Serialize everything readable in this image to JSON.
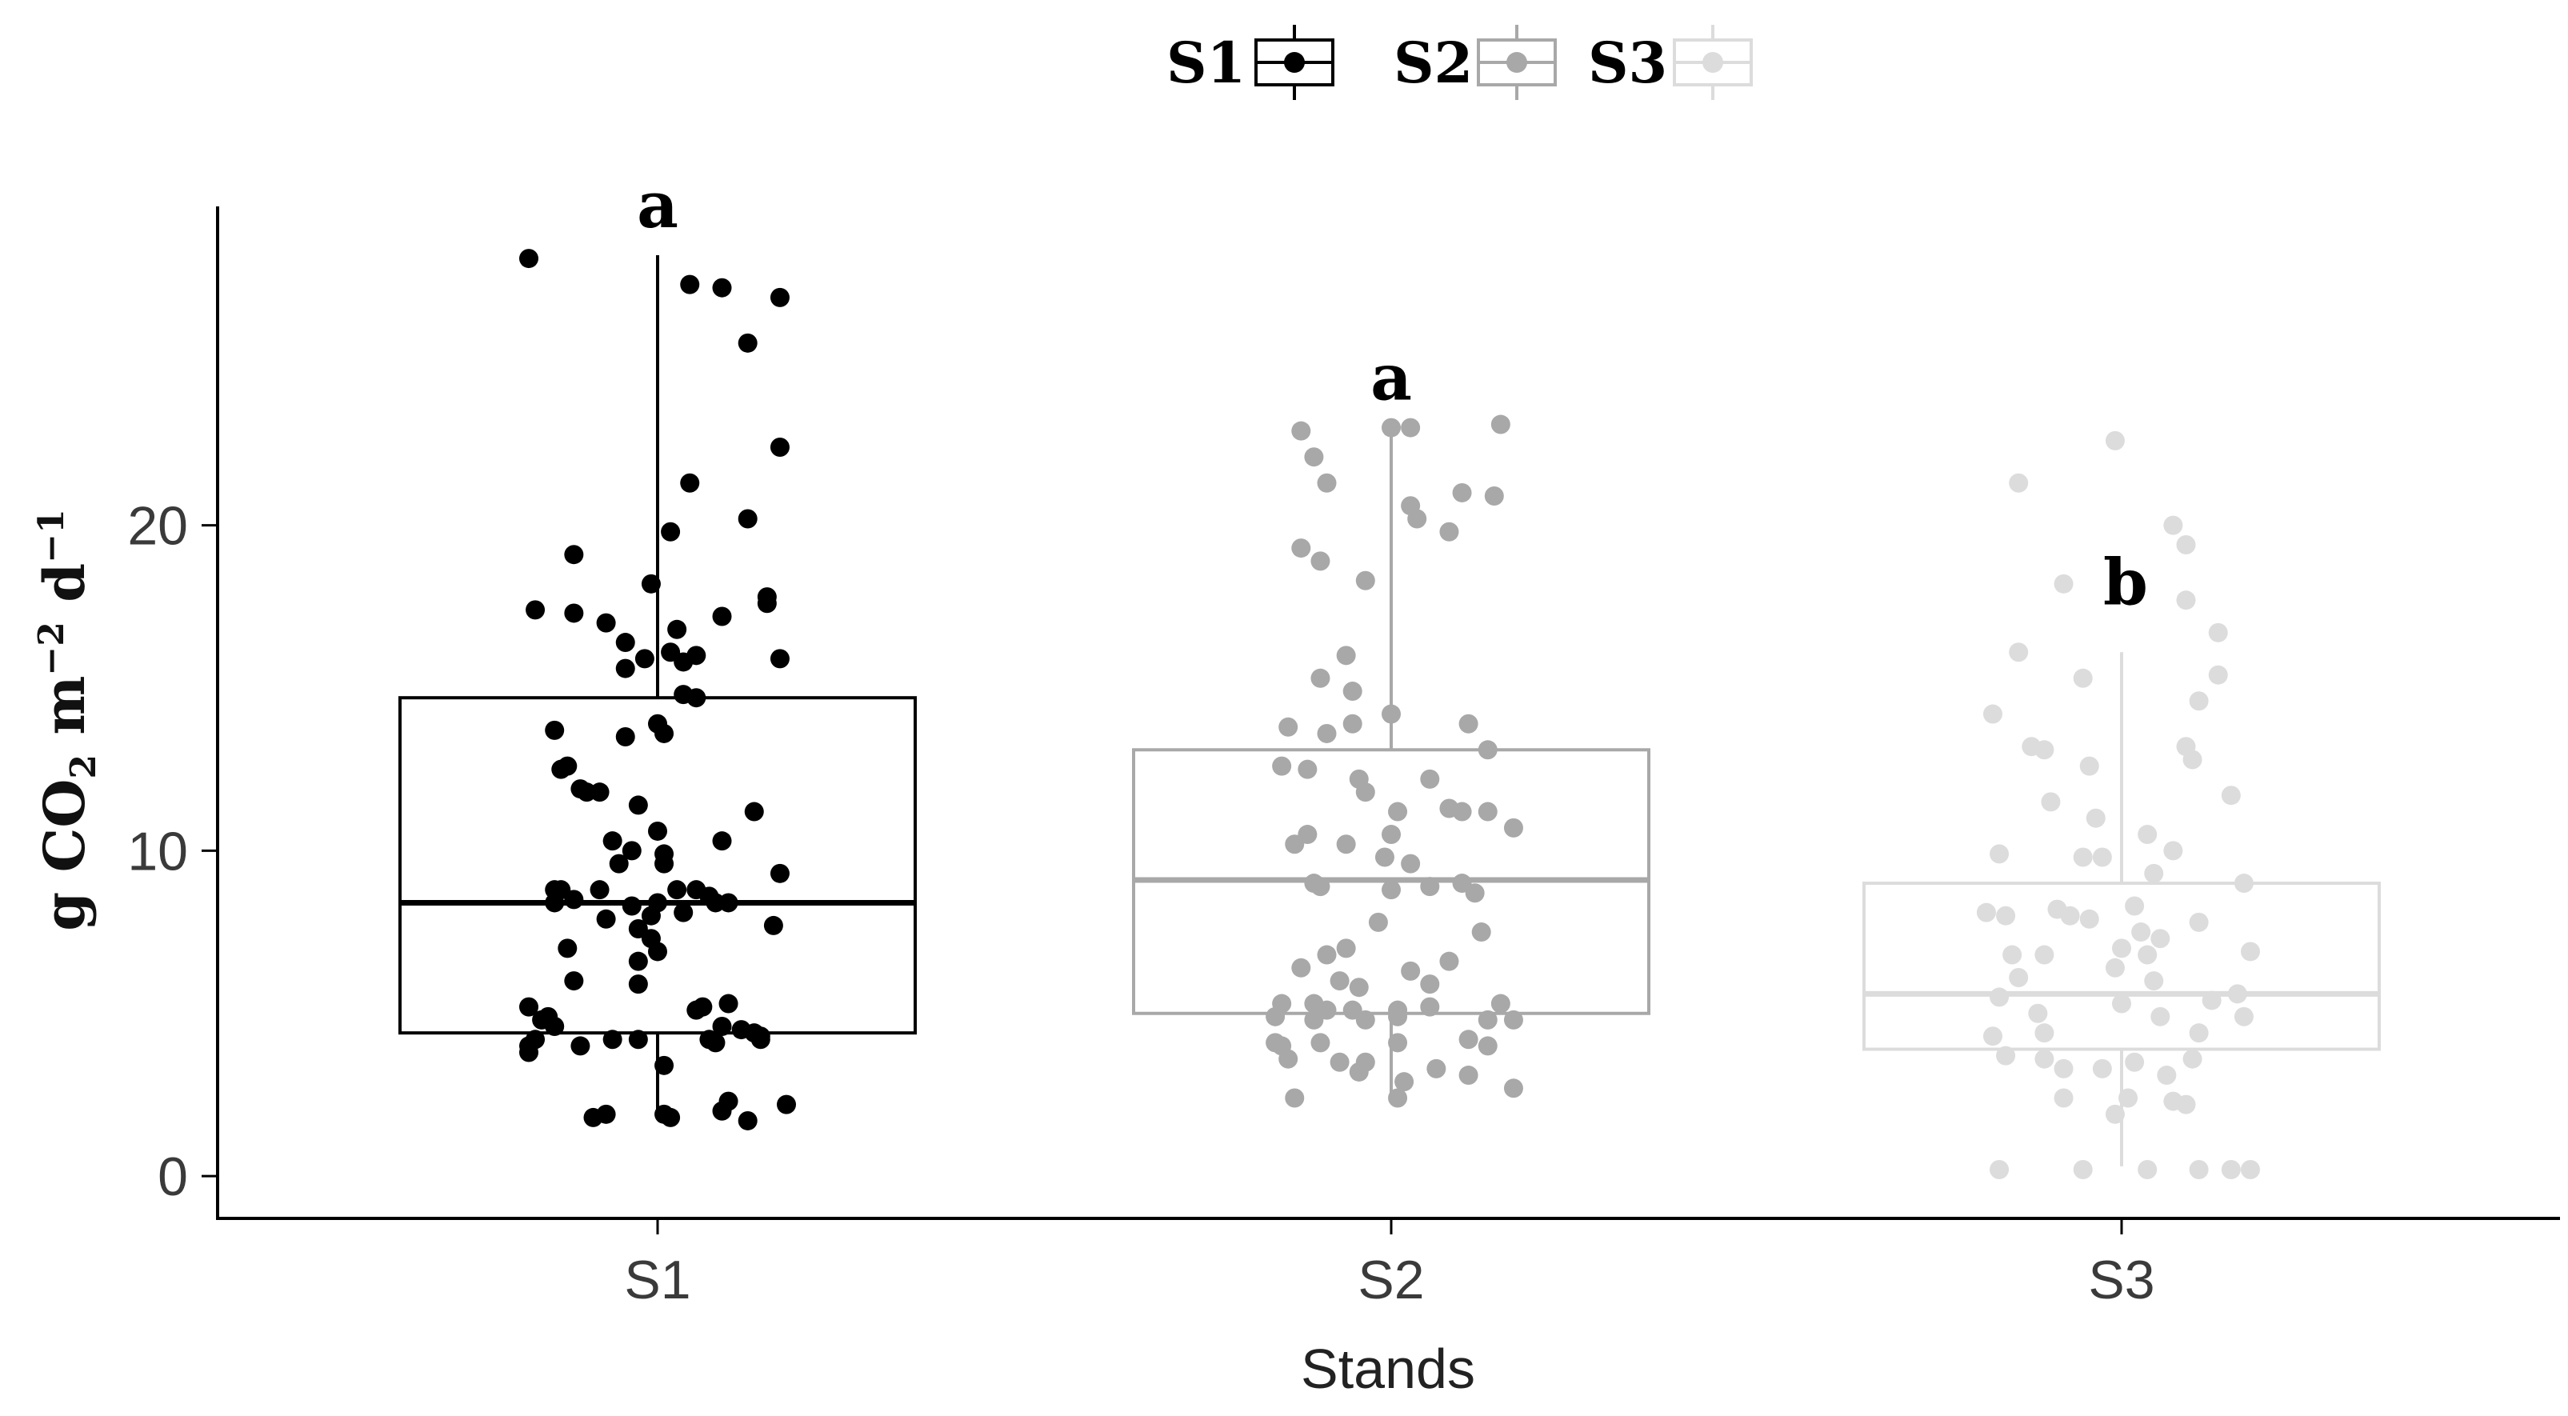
{
  "chart_data": {
    "type": "boxplot",
    "xlabel": "Stands",
    "ylabel": {
      "main": "g CO",
      "sub": "2",
      "unit_m": " m",
      "sup_m": "−2",
      "unit_d": " d",
      "sup_d": "−1"
    },
    "categories": [
      "S1",
      "S2",
      "S3"
    ],
    "ylim": [
      -1.3,
      29.8
    ],
    "yticks": [
      0,
      10,
      20
    ],
    "grid": false,
    "legend": {
      "position": "top",
      "entries": [
        {
          "label": "S1",
          "color": "#000000"
        },
        {
          "label": "S2",
          "color": "#a8a8a8"
        },
        {
          "label": "S3",
          "color": "#dcdcdc"
        }
      ]
    },
    "series": [
      {
        "name": "S1",
        "color": "#000000",
        "letter": "a",
        "box": {
          "q1": 4.4,
          "median": 8.4,
          "q3": 14.7,
          "whisker_low": 1.9,
          "whisker_high": 28.3
        },
        "points": [
          [
            -0.2,
            28.2
          ],
          [
            0.05,
            27.4
          ],
          [
            0.1,
            27.3
          ],
          [
            0.19,
            27.0
          ],
          [
            0.14,
            25.6
          ],
          [
            0.19,
            22.4
          ],
          [
            0.05,
            21.3
          ],
          [
            0.14,
            20.2
          ],
          [
            0.02,
            19.8
          ],
          [
            -0.13,
            19.1
          ],
          [
            -0.01,
            18.2
          ],
          [
            0.17,
            17.8
          ],
          [
            0.17,
            17.6
          ],
          [
            -0.19,
            17.4
          ],
          [
            -0.13,
            17.3
          ],
          [
            0.1,
            17.2
          ],
          [
            -0.08,
            17.0
          ],
          [
            0.03,
            16.8
          ],
          [
            -0.05,
            16.4
          ],
          [
            0.02,
            16.1
          ],
          [
            0.06,
            16.0
          ],
          [
            -0.02,
            15.9
          ],
          [
            0.04,
            15.8
          ],
          [
            0.19,
            15.9
          ],
          [
            -0.05,
            15.6
          ],
          [
            0.04,
            14.8
          ],
          [
            0.06,
            14.7
          ],
          [
            -0.16,
            13.7
          ],
          [
            0.0,
            13.9
          ],
          [
            0.01,
            13.6
          ],
          [
            -0.05,
            13.5
          ],
          [
            -0.15,
            12.5
          ],
          [
            -0.14,
            12.6
          ],
          [
            -0.12,
            11.9
          ],
          [
            -0.11,
            11.8
          ],
          [
            -0.09,
            11.8
          ],
          [
            -0.03,
            11.4
          ],
          [
            0.15,
            11.2
          ],
          [
            0.0,
            10.6
          ],
          [
            -0.07,
            10.3
          ],
          [
            0.1,
            10.3
          ],
          [
            -0.04,
            10.0
          ],
          [
            0.01,
            9.9
          ],
          [
            -0.06,
            9.6
          ],
          [
            0.01,
            9.6
          ],
          [
            0.19,
            9.3
          ],
          [
            -0.16,
            8.8
          ],
          [
            -0.15,
            8.8
          ],
          [
            -0.09,
            8.8
          ],
          [
            0.03,
            8.8
          ],
          [
            0.06,
            8.8
          ],
          [
            0.08,
            8.6
          ],
          [
            -0.16,
            8.4
          ],
          [
            -0.13,
            8.5
          ],
          [
            0.09,
            8.4
          ],
          [
            0.11,
            8.4
          ],
          [
            -0.04,
            8.3
          ],
          [
            0.0,
            8.4
          ],
          [
            -0.01,
            8.0
          ],
          [
            0.04,
            8.1
          ],
          [
            -0.08,
            7.9
          ],
          [
            0.18,
            7.7
          ],
          [
            -0.03,
            7.6
          ],
          [
            -0.01,
            7.3
          ],
          [
            0.0,
            6.9
          ],
          [
            -0.14,
            7.0
          ],
          [
            -0.03,
            6.6
          ],
          [
            -0.13,
            6.0
          ],
          [
            -0.03,
            5.9
          ],
          [
            -0.2,
            5.2
          ],
          [
            -0.17,
            4.9
          ],
          [
            0.11,
            5.3
          ],
          [
            0.07,
            5.2
          ],
          [
            0.06,
            5.1
          ],
          [
            -0.18,
            4.8
          ],
          [
            -0.16,
            4.6
          ],
          [
            0.1,
            4.6
          ],
          [
            0.13,
            4.5
          ],
          [
            0.15,
            4.4
          ],
          [
            0.16,
            4.3
          ],
          [
            -0.19,
            4.2
          ],
          [
            -0.07,
            4.2
          ],
          [
            -0.03,
            4.2
          ],
          [
            0.08,
            4.2
          ],
          [
            0.09,
            4.1
          ],
          [
            0.16,
            4.2
          ],
          [
            -0.2,
            4.0
          ],
          [
            -0.12,
            4.0
          ],
          [
            -0.2,
            3.8
          ],
          [
            0.01,
            3.4
          ],
          [
            0.11,
            2.3
          ],
          [
            0.2,
            2.2
          ],
          [
            -0.08,
            1.9
          ],
          [
            0.01,
            1.9
          ],
          [
            0.1,
            2.0
          ],
          [
            -0.1,
            1.8
          ],
          [
            0.02,
            1.8
          ],
          [
            0.14,
            1.7
          ]
        ]
      },
      {
        "name": "S2",
        "color": "#a8a8a8",
        "letter": "a",
        "box": {
          "q1": 5.0,
          "median": 9.1,
          "q3": 13.1,
          "whisker_low": 2.4,
          "whisker_high": 23.0
        },
        "points": [
          [
            -0.14,
            22.9
          ],
          [
            0.0,
            23.0
          ],
          [
            0.03,
            23.0
          ],
          [
            0.17,
            23.1
          ],
          [
            -0.12,
            22.1
          ],
          [
            -0.1,
            21.3
          ],
          [
            0.11,
            21.0
          ],
          [
            0.16,
            20.9
          ],
          [
            0.03,
            20.6
          ],
          [
            0.04,
            20.2
          ],
          [
            0.09,
            19.8
          ],
          [
            -0.14,
            19.3
          ],
          [
            -0.11,
            18.9
          ],
          [
            -0.04,
            18.3
          ],
          [
            -0.11,
            15.3
          ],
          [
            -0.07,
            16.0
          ],
          [
            -0.06,
            14.9
          ],
          [
            0.0,
            14.2
          ],
          [
            -0.16,
            13.8
          ],
          [
            -0.1,
            13.6
          ],
          [
            -0.06,
            13.9
          ],
          [
            0.12,
            13.9
          ],
          [
            -0.17,
            12.6
          ],
          [
            -0.13,
            12.5
          ],
          [
            -0.05,
            12.2
          ],
          [
            0.06,
            12.2
          ],
          [
            0.15,
            13.1
          ],
          [
            -0.04,
            11.8
          ],
          [
            0.01,
            11.2
          ],
          [
            0.09,
            11.3
          ],
          [
            0.11,
            11.2
          ],
          [
            0.15,
            11.2
          ],
          [
            -0.13,
            10.5
          ],
          [
            0.0,
            10.5
          ],
          [
            0.19,
            10.7
          ],
          [
            -0.15,
            10.2
          ],
          [
            -0.07,
            10.2
          ],
          [
            -0.01,
            9.8
          ],
          [
            0.03,
            9.6
          ],
          [
            -0.12,
            9.0
          ],
          [
            -0.11,
            8.9
          ],
          [
            0.0,
            8.8
          ],
          [
            0.06,
            8.9
          ],
          [
            0.11,
            9.0
          ],
          [
            0.13,
            8.7
          ],
          [
            -0.02,
            7.8
          ],
          [
            0.14,
            7.5
          ],
          [
            -0.07,
            7.0
          ],
          [
            -0.1,
            6.8
          ],
          [
            0.09,
            6.6
          ],
          [
            -0.14,
            6.4
          ],
          [
            0.03,
            6.3
          ],
          [
            -0.08,
            6.0
          ],
          [
            -0.05,
            5.8
          ],
          [
            0.06,
            5.9
          ],
          [
            -0.17,
            5.3
          ],
          [
            -0.12,
            5.3
          ],
          [
            -0.1,
            5.1
          ],
          [
            -0.06,
            5.1
          ],
          [
            0.01,
            5.1
          ],
          [
            0.06,
            5.2
          ],
          [
            0.17,
            5.3
          ],
          [
            -0.18,
            4.9
          ],
          [
            -0.12,
            4.8
          ],
          [
            -0.04,
            4.8
          ],
          [
            0.01,
            4.9
          ],
          [
            0.15,
            4.8
          ],
          [
            0.19,
            4.8
          ],
          [
            -0.18,
            4.1
          ],
          [
            -0.17,
            4.0
          ],
          [
            -0.11,
            4.1
          ],
          [
            0.01,
            4.1
          ],
          [
            0.12,
            4.2
          ],
          [
            0.15,
            4.0
          ],
          [
            -0.16,
            3.6
          ],
          [
            -0.08,
            3.5
          ],
          [
            -0.04,
            3.5
          ],
          [
            0.07,
            3.3
          ],
          [
            0.12,
            3.1
          ],
          [
            -0.05,
            3.2
          ],
          [
            0.02,
            2.9
          ],
          [
            0.19,
            2.7
          ],
          [
            -0.15,
            2.4
          ],
          [
            0.01,
            2.4
          ]
        ]
      },
      {
        "name": "S3",
        "color": "#dcdcdc",
        "letter": "b",
        "box": {
          "q1": 3.9,
          "median": 5.6,
          "q3": 9.0,
          "whisker_low": 0.3,
          "whisker_high": 16.1
        },
        "points": [
          [
            -0.01,
            22.6
          ],
          [
            -0.16,
            21.3
          ],
          [
            0.08,
            20.0
          ],
          [
            0.1,
            19.4
          ],
          [
            -0.09,
            18.2
          ],
          [
            0.1,
            17.7
          ],
          [
            -0.16,
            16.1
          ],
          [
            0.15,
            16.7
          ],
          [
            -0.06,
            15.3
          ],
          [
            0.15,
            15.4
          ],
          [
            0.12,
            14.6
          ],
          [
            -0.2,
            14.2
          ],
          [
            -0.14,
            13.2
          ],
          [
            -0.12,
            13.1
          ],
          [
            0.1,
            13.2
          ],
          [
            -0.05,
            12.6
          ],
          [
            0.11,
            12.8
          ],
          [
            0.17,
            11.7
          ],
          [
            -0.11,
            11.5
          ],
          [
            -0.04,
            11.0
          ],
          [
            0.04,
            10.5
          ],
          [
            -0.19,
            9.9
          ],
          [
            -0.06,
            9.8
          ],
          [
            -0.03,
            9.8
          ],
          [
            0.08,
            10.0
          ],
          [
            0.05,
            9.3
          ],
          [
            0.19,
            9.0
          ],
          [
            -0.21,
            8.1
          ],
          [
            -0.18,
            8.0
          ],
          [
            -0.1,
            8.2
          ],
          [
            -0.08,
            8.0
          ],
          [
            0.02,
            8.3
          ],
          [
            -0.05,
            7.9
          ],
          [
            0.03,
            7.5
          ],
          [
            0.12,
            7.8
          ],
          [
            0.06,
            7.3
          ],
          [
            -0.17,
            6.8
          ],
          [
            -0.12,
            6.8
          ],
          [
            0.0,
            7.0
          ],
          [
            0.04,
            6.8
          ],
          [
            0.2,
            6.9
          ],
          [
            -0.01,
            6.4
          ],
          [
            -0.16,
            6.1
          ],
          [
            0.05,
            6.0
          ],
          [
            -0.19,
            5.5
          ],
          [
            0.0,
            5.3
          ],
          [
            0.14,
            5.4
          ],
          [
            0.18,
            5.6
          ],
          [
            -0.13,
            5.0
          ],
          [
            0.06,
            4.9
          ],
          [
            0.19,
            4.9
          ],
          [
            -0.2,
            4.3
          ],
          [
            -0.12,
            4.4
          ],
          [
            0.12,
            4.4
          ],
          [
            -0.18,
            3.7
          ],
          [
            -0.12,
            3.6
          ],
          [
            0.02,
            3.5
          ],
          [
            0.11,
            3.6
          ],
          [
            -0.09,
            3.3
          ],
          [
            -0.03,
            3.3
          ],
          [
            0.07,
            3.1
          ],
          [
            -0.09,
            2.4
          ],
          [
            0.01,
            2.4
          ],
          [
            0.08,
            2.3
          ],
          [
            -0.01,
            1.9
          ],
          [
            0.1,
            2.2
          ],
          [
            -0.19,
            0.2
          ],
          [
            -0.06,
            0.2
          ],
          [
            0.04,
            0.2
          ],
          [
            0.12,
            0.2
          ],
          [
            0.17,
            0.2
          ],
          [
            0.2,
            0.2
          ]
        ]
      }
    ]
  }
}
